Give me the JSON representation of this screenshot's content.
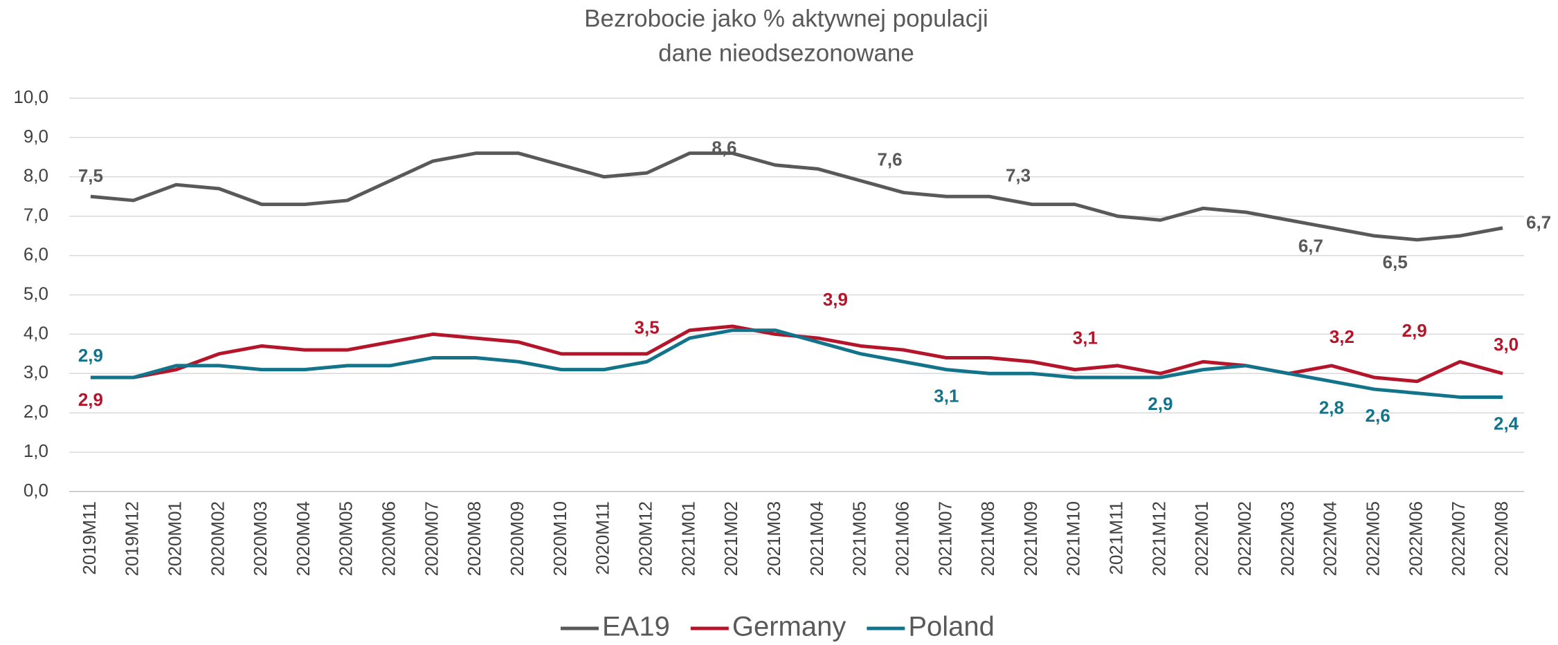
{
  "chart_data": {
    "type": "line",
    "title": "Bezrobocie jako % aktywnej populacji",
    "subtitle": "dane nieodsezonowane",
    "categories": [
      "2019M11",
      "2019M12",
      "2020M01",
      "2020M02",
      "2020M03",
      "2020M04",
      "2020M05",
      "2020M06",
      "2020M07",
      "2020M08",
      "2020M09",
      "2020M10",
      "2020M11",
      "2020M12",
      "2021M01",
      "2021M02",
      "2021M03",
      "2021M04",
      "2021M05",
      "2021M06",
      "2021M07",
      "2021M08",
      "2021M09",
      "2021M10",
      "2021M11",
      "2021M12",
      "2022M01",
      "2022M02",
      "2022M03",
      "2022M04",
      "2022M05",
      "2022M06",
      "2022M07",
      "2022M08"
    ],
    "series": [
      {
        "name": "EA19",
        "color": "#595959",
        "values": [
          7.5,
          7.4,
          7.8,
          7.7,
          7.3,
          7.3,
          7.4,
          7.9,
          8.4,
          8.6,
          8.6,
          8.3,
          8.0,
          8.1,
          8.6,
          8.6,
          8.3,
          8.2,
          7.9,
          7.6,
          7.5,
          7.5,
          7.3,
          7.3,
          7.0,
          6.9,
          7.2,
          7.1,
          6.9,
          6.7,
          6.5,
          6.4,
          6.5,
          6.7
        ],
        "value_labels": [
          "7,5",
          null,
          null,
          null,
          null,
          null,
          null,
          null,
          null,
          null,
          null,
          null,
          null,
          null,
          "8,6",
          null,
          null,
          null,
          null,
          "7,6",
          null,
          null,
          "7,3",
          null,
          null,
          null,
          null,
          null,
          null,
          "6,7",
          "6,5",
          null,
          null,
          "6,7"
        ]
      },
      {
        "name": "Germany",
        "color": "#b5152b",
        "values": [
          2.9,
          2.9,
          3.1,
          3.5,
          3.7,
          3.6,
          3.6,
          3.8,
          4.0,
          3.9,
          3.8,
          3.5,
          3.5,
          3.5,
          4.1,
          4.2,
          4.0,
          3.9,
          3.7,
          3.6,
          3.4,
          3.4,
          3.3,
          3.1,
          3.2,
          3.0,
          3.3,
          3.2,
          3.0,
          3.2,
          2.9,
          2.8,
          3.3,
          3.0
        ],
        "value_labels": [
          "2,9",
          null,
          null,
          null,
          null,
          null,
          null,
          null,
          null,
          null,
          null,
          null,
          null,
          "3,5",
          null,
          null,
          null,
          "3,9",
          null,
          null,
          null,
          null,
          null,
          "3,1",
          null,
          null,
          null,
          null,
          null,
          "3,2",
          "2,9",
          null,
          null,
          "3,0"
        ]
      },
      {
        "name": "Poland",
        "color": "#12738a",
        "values": [
          2.9,
          2.9,
          3.2,
          3.2,
          3.1,
          3.1,
          3.2,
          3.2,
          3.4,
          3.4,
          3.3,
          3.1,
          3.1,
          3.3,
          3.9,
          4.1,
          4.1,
          3.8,
          3.5,
          3.3,
          3.1,
          3.0,
          3.0,
          2.9,
          2.9,
          2.9,
          3.1,
          3.2,
          3.0,
          2.8,
          2.6,
          2.5,
          2.4,
          2.4
        ],
        "value_labels": [
          "2,9",
          null,
          null,
          null,
          null,
          null,
          null,
          null,
          null,
          null,
          null,
          null,
          null,
          null,
          null,
          null,
          null,
          null,
          null,
          null,
          "3,1",
          null,
          null,
          null,
          null,
          "2,9",
          null,
          null,
          null,
          "2,8",
          "2,6",
          null,
          null,
          "2,4"
        ]
      }
    ],
    "ylim": [
      0,
      10
    ],
    "yticks": [
      {
        "value": 0,
        "label": "0,0"
      },
      {
        "value": 1,
        "label": "1,0"
      },
      {
        "value": 2,
        "label": "2,0"
      },
      {
        "value": 3,
        "label": "3,0"
      },
      {
        "value": 4,
        "label": "4,0"
      },
      {
        "value": 5,
        "label": "5,0"
      },
      {
        "value": 6,
        "label": "6,0"
      },
      {
        "value": 7,
        "label": "7,0"
      },
      {
        "value": 8,
        "label": "8,0"
      },
      {
        "value": 9,
        "label": "9,0"
      },
      {
        "value": 10,
        "label": "10,0"
      }
    ],
    "grid": true,
    "legend": "bottom"
  }
}
